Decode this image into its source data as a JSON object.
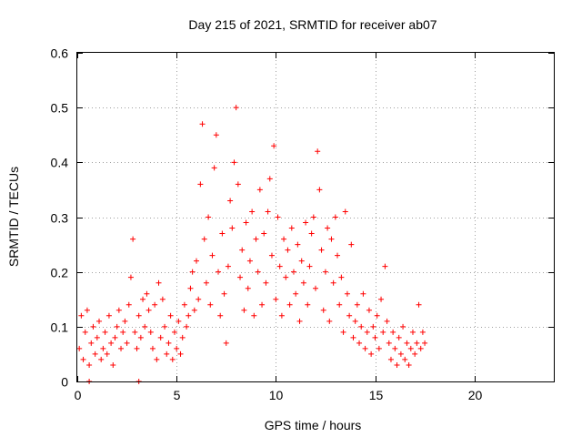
{
  "chart_data": {
    "type": "scatter",
    "title": "Day 215 of 2021, SRMTID for receiver ab07",
    "xlabel": "GPS time / hours",
    "ylabel": "SRMTID / TECUs",
    "xlim": [
      0,
      24
    ],
    "ylim": [
      0,
      0.6
    ],
    "xticks": [
      0,
      5,
      10,
      15,
      20
    ],
    "xtick_labels": [
      "0",
      "5",
      "10",
      "15",
      "20"
    ],
    "yticks": [
      0,
      0.1,
      0.2,
      0.3,
      0.4,
      0.5,
      0.6
    ],
    "ytick_labels": [
      "0",
      "0.1",
      "0.2",
      "0.3",
      "0.4",
      "0.5",
      "0.6"
    ],
    "grid": true,
    "marker": "plus",
    "color": "#ff0000",
    "series": [
      {
        "name": "SRMTID",
        "points": [
          [
            0.1,
            0.06
          ],
          [
            0.2,
            0.12
          ],
          [
            0.3,
            0.04
          ],
          [
            0.4,
            0.09
          ],
          [
            0.5,
            0.13
          ],
          [
            0.6,
            0.03
          ],
          [
            0.7,
            0.07
          ],
          [
            0.8,
            0.1
          ],
          [
            0.9,
            0.05
          ],
          [
            1.0,
            0.08
          ],
          [
            1.1,
            0.11
          ],
          [
            1.2,
            0.04
          ],
          [
            1.3,
            0.06
          ],
          [
            1.4,
            0.09
          ],
          [
            1.5,
            0.05
          ],
          [
            1.6,
            0.12
          ],
          [
            1.7,
            0.07
          ],
          [
            1.8,
            0.03
          ],
          [
            1.9,
            0.08
          ],
          [
            2.0,
            0.1
          ],
          [
            2.1,
            0.13
          ],
          [
            2.2,
            0.06
          ],
          [
            2.3,
            0.09
          ],
          [
            2.4,
            0.11
          ],
          [
            2.5,
            0.07
          ],
          [
            2.6,
            0.14
          ],
          [
            2.7,
            0.19
          ],
          [
            2.8,
            0.26
          ],
          [
            2.9,
            0.09
          ],
          [
            3.0,
            0.06
          ],
          [
            3.1,
            0.12
          ],
          [
            3.2,
            0.08
          ],
          [
            3.3,
            0.15
          ],
          [
            3.4,
            0.1
          ],
          [
            3.5,
            0.16
          ],
          [
            3.6,
            0.13
          ],
          [
            3.7,
            0.09
          ],
          [
            3.8,
            0.06
          ],
          [
            3.9,
            0.14
          ],
          [
            4.0,
            0.04
          ],
          [
            4.1,
            0.18
          ],
          [
            4.2,
            0.08
          ],
          [
            4.3,
            0.15
          ],
          [
            4.4,
            0.1
          ],
          [
            4.5,
            0.05
          ],
          [
            4.6,
            0.07
          ],
          [
            4.7,
            0.12
          ],
          [
            4.8,
            0.04
          ],
          [
            4.9,
            0.09
          ],
          [
            5.0,
            0.06
          ],
          [
            5.1,
            0.11
          ],
          [
            5.2,
            0.05
          ],
          [
            5.3,
            0.08
          ],
          [
            5.4,
            0.14
          ],
          [
            5.5,
            0.1
          ],
          [
            5.6,
            0.12
          ],
          [
            5.7,
            0.17
          ],
          [
            5.8,
            0.2
          ],
          [
            5.9,
            0.13
          ],
          [
            6.0,
            0.22
          ],
          [
            6.1,
            0.15
          ],
          [
            6.2,
            0.36
          ],
          [
            6.3,
            0.47
          ],
          [
            6.4,
            0.26
          ],
          [
            6.5,
            0.18
          ],
          [
            6.6,
            0.3
          ],
          [
            6.7,
            0.14
          ],
          [
            6.8,
            0.23
          ],
          [
            6.9,
            0.39
          ],
          [
            7.0,
            0.45
          ],
          [
            7.1,
            0.2
          ],
          [
            7.2,
            0.12
          ],
          [
            7.3,
            0.27
          ],
          [
            7.4,
            0.16
          ],
          [
            7.5,
            0.07
          ],
          [
            7.6,
            0.21
          ],
          [
            7.7,
            0.33
          ],
          [
            7.8,
            0.28
          ],
          [
            7.9,
            0.4
          ],
          [
            8.0,
            0.5
          ],
          [
            8.1,
            0.36
          ],
          [
            8.2,
            0.19
          ],
          [
            8.3,
            0.24
          ],
          [
            8.4,
            0.13
          ],
          [
            8.5,
            0.29
          ],
          [
            8.6,
            0.17
          ],
          [
            8.7,
            0.22
          ],
          [
            8.8,
            0.31
          ],
          [
            8.9,
            0.12
          ],
          [
            9.0,
            0.26
          ],
          [
            9.1,
            0.2
          ],
          [
            9.2,
            0.35
          ],
          [
            9.3,
            0.14
          ],
          [
            9.4,
            0.27
          ],
          [
            9.5,
            0.18
          ],
          [
            9.6,
            0.31
          ],
          [
            9.7,
            0.37
          ],
          [
            9.8,
            0.23
          ],
          [
            9.9,
            0.43
          ],
          [
            10.0,
            0.15
          ],
          [
            10.1,
            0.3
          ],
          [
            10.2,
            0.21
          ],
          [
            10.3,
            0.12
          ],
          [
            10.4,
            0.26
          ],
          [
            10.5,
            0.19
          ],
          [
            10.6,
            0.24
          ],
          [
            10.7,
            0.14
          ],
          [
            10.8,
            0.28
          ],
          [
            10.9,
            0.2
          ],
          [
            11.0,
            0.16
          ],
          [
            11.1,
            0.25
          ],
          [
            11.2,
            0.11
          ],
          [
            11.3,
            0.22
          ],
          [
            11.4,
            0.18
          ],
          [
            11.5,
            0.29
          ],
          [
            11.6,
            0.14
          ],
          [
            11.7,
            0.21
          ],
          [
            11.8,
            0.27
          ],
          [
            11.9,
            0.3
          ],
          [
            12.0,
            0.17
          ],
          [
            12.1,
            0.42
          ],
          [
            12.2,
            0.35
          ],
          [
            12.3,
            0.24
          ],
          [
            12.4,
            0.13
          ],
          [
            12.5,
            0.2
          ],
          [
            12.6,
            0.28
          ],
          [
            12.7,
            0.11
          ],
          [
            12.8,
            0.26
          ],
          [
            12.9,
            0.18
          ],
          [
            13.0,
            0.3
          ],
          [
            13.1,
            0.23
          ],
          [
            13.2,
            0.14
          ],
          [
            13.3,
            0.19
          ],
          [
            13.4,
            0.09
          ],
          [
            13.5,
            0.31
          ],
          [
            13.6,
            0.16
          ],
          [
            13.7,
            0.12
          ],
          [
            13.8,
            0.25
          ],
          [
            13.9,
            0.08
          ],
          [
            14.0,
            0.11
          ],
          [
            14.1,
            0.14
          ],
          [
            14.2,
            0.07
          ],
          [
            14.3,
            0.1
          ],
          [
            14.4,
            0.16
          ],
          [
            14.5,
            0.06
          ],
          [
            14.6,
            0.09
          ],
          [
            14.7,
            0.13
          ],
          [
            14.8,
            0.05
          ],
          [
            14.9,
            0.1
          ],
          [
            15.0,
            0.08
          ],
          [
            15.1,
            0.12
          ],
          [
            15.2,
            0.06
          ],
          [
            15.3,
            0.15
          ],
          [
            15.4,
            0.09
          ],
          [
            15.5,
            0.21
          ],
          [
            15.6,
            0.11
          ],
          [
            15.7,
            0.07
          ],
          [
            15.8,
            0.04
          ],
          [
            15.9,
            0.09
          ],
          [
            16.0,
            0.06
          ],
          [
            16.1,
            0.03
          ],
          [
            16.2,
            0.08
          ],
          [
            16.3,
            0.05
          ],
          [
            16.4,
            0.1
          ],
          [
            16.5,
            0.04
          ],
          [
            16.6,
            0.07
          ],
          [
            16.7,
            0.03
          ],
          [
            16.8,
            0.06
          ],
          [
            16.9,
            0.09
          ],
          [
            17.0,
            0.05
          ],
          [
            17.1,
            0.07
          ],
          [
            17.2,
            0.14
          ],
          [
            17.3,
            0.06
          ],
          [
            17.4,
            0.09
          ],
          [
            17.5,
            0.07
          ],
          [
            0.6,
            0.0
          ],
          [
            3.1,
            0.0
          ]
        ]
      }
    ]
  }
}
